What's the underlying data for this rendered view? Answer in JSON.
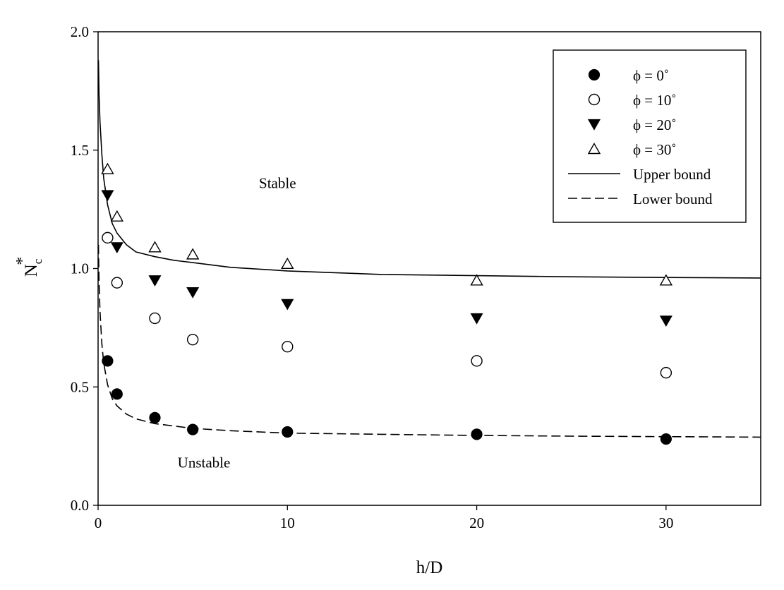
{
  "chart_data": {
    "type": "scatter",
    "xlabel": "h/D",
    "ylabel_main": "N",
    "ylabel_sub": "c",
    "ylabel_sup": "*",
    "xlim": [
      0,
      35
    ],
    "ylim": [
      0,
      2.0
    ],
    "xticks": [
      0,
      10,
      20,
      30
    ],
    "xtick_labels": [
      "0",
      "10",
      "20",
      "30"
    ],
    "yticks": [
      0,
      0.5,
      1.0,
      1.5,
      2.0
    ],
    "ytick_labels": [
      "0.0",
      "0.5",
      "1.0",
      "1.5",
      "2.0"
    ],
    "grid": false,
    "legend_position": "top-right",
    "annotations": {
      "stable": {
        "text": "Stable",
        "x": 8.5,
        "y": 1.34
      },
      "unstable": {
        "text": "Unstable",
        "x": 4.2,
        "y": 0.16
      }
    },
    "series": [
      {
        "name": "ϕ = 0˚",
        "marker": "filled-circle",
        "x": [
          0.5,
          1,
          3,
          5,
          10,
          20,
          30
        ],
        "y": [
          0.61,
          0.47,
          0.37,
          0.32,
          0.31,
          0.3,
          0.28
        ]
      },
      {
        "name": "ϕ = 10˚",
        "marker": "open-circle",
        "x": [
          0.5,
          1,
          3,
          5,
          10,
          20,
          30
        ],
        "y": [
          1.13,
          0.94,
          0.79,
          0.7,
          0.67,
          0.61,
          0.56
        ]
      },
      {
        "name": "ϕ = 20˚",
        "marker": "filled-triangle-down",
        "x": [
          0.5,
          1,
          3,
          5,
          10,
          20,
          30
        ],
        "y": [
          1.31,
          1.09,
          0.95,
          0.9,
          0.85,
          0.79,
          0.78
        ]
      },
      {
        "name": "ϕ = 30˚",
        "marker": "open-triangle-up",
        "x": [
          0.5,
          1,
          3,
          5,
          10,
          20,
          30
        ],
        "y": [
          1.42,
          1.22,
          1.09,
          1.06,
          1.02,
          0.95,
          0.95
        ]
      },
      {
        "name": "Upper bound",
        "line": "solid",
        "x": [
          0.02,
          0.05,
          0.1,
          0.2,
          0.3,
          0.5,
          0.75,
          1,
          1.5,
          2,
          3,
          4,
          5,
          7,
          10,
          15,
          20,
          25,
          30,
          35
        ],
        "y": [
          1.88,
          1.74,
          1.62,
          1.48,
          1.38,
          1.27,
          1.19,
          1.15,
          1.1,
          1.07,
          1.05,
          1.035,
          1.025,
          1.005,
          0.99,
          0.975,
          0.97,
          0.965,
          0.962,
          0.96
        ]
      },
      {
        "name": "Lower bound",
        "line": "dashed",
        "x": [
          0.02,
          0.05,
          0.1,
          0.2,
          0.3,
          0.5,
          0.75,
          1,
          1.5,
          2,
          3,
          4,
          5,
          7,
          10,
          15,
          20,
          25,
          30,
          35
        ],
        "y": [
          1.1,
          0.95,
          0.82,
          0.68,
          0.6,
          0.51,
          0.45,
          0.42,
          0.385,
          0.365,
          0.345,
          0.335,
          0.325,
          0.315,
          0.305,
          0.3,
          0.295,
          0.292,
          0.29,
          0.288
        ]
      }
    ]
  }
}
